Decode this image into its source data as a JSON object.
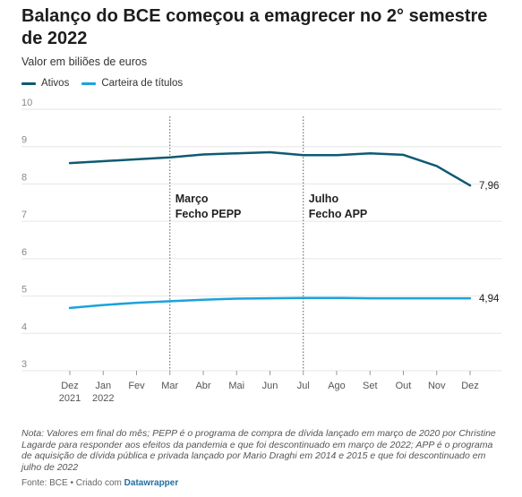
{
  "header": {
    "title": "Balanço do BCE começou a emagrecer no 2° semestre de 2022",
    "subtitle": "Valor em biliões de euros"
  },
  "chart_data": {
    "type": "line",
    "title": "Balanço do BCE começou a emagrecer no 2° semestre de 2022",
    "subtitle": "Valor em biliões de euros",
    "categories": [
      [
        "Dez",
        "2021"
      ],
      [
        "Jan",
        "2022"
      ],
      [
        "Fev",
        ""
      ],
      [
        "Mar",
        ""
      ],
      [
        "Abr",
        ""
      ],
      [
        "Mai",
        ""
      ],
      [
        "Jun",
        ""
      ],
      [
        "Jul",
        ""
      ],
      [
        "Ago",
        ""
      ],
      [
        "Set",
        ""
      ],
      [
        "Out",
        ""
      ],
      [
        "Nov",
        ""
      ],
      [
        "Dez",
        ""
      ]
    ],
    "ylim": [
      3,
      10
    ],
    "yticks": [
      3,
      4,
      5,
      6,
      7,
      8,
      9,
      10
    ],
    "grid": true,
    "legend_position": "top-left",
    "series": [
      {
        "name": "Ativos",
        "color": "#0e5a73",
        "values": [
          8.56,
          8.61,
          8.66,
          8.71,
          8.79,
          8.82,
          8.85,
          8.77,
          8.77,
          8.82,
          8.78,
          8.48,
          7.96
        ],
        "end_label": "7,96"
      },
      {
        "name": "Carteira de títulos",
        "color": "#1aa3db",
        "values": [
          4.68,
          4.76,
          4.82,
          4.86,
          4.9,
          4.93,
          4.94,
          4.95,
          4.95,
          4.94,
          4.94,
          4.94,
          4.94
        ],
        "end_label": "4,94"
      }
    ],
    "annotations": [
      {
        "x_index": 3,
        "lines": [
          "Março",
          "Fecho PEPP"
        ]
      },
      {
        "x_index": 7,
        "lines": [
          "Julho",
          "Fecho APP"
        ]
      }
    ]
  },
  "footer": {
    "note": "Nota: Valores em final do mês; PEPP é o programa de compra de dívida lançado em março de 2020 por Christine Lagarde para responder aos efeitos da pandemia e que foi descontinuado em março de 2022; APP é o programa de aquisição de dívida pública e privada lançado por Mario Draghi em 2014 e 2015 e que foi descontinuado em julho de 2022",
    "source_prefix": "Fonte: BCE • Criado com ",
    "source_brand": "Datawrapper"
  }
}
